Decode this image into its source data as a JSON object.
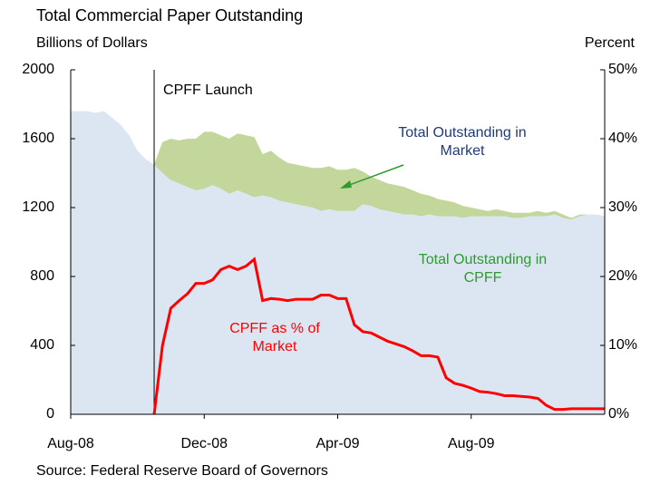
{
  "chart_data": {
    "type": "area",
    "title": "Total Commercial Paper Outstanding",
    "y_label": "Billions of Dollars",
    "y2_label": "Percent",
    "source": "Source: Federal Reserve Board of Governors",
    "annotation": "CPFF Launch",
    "categories": [
      "Aug-08",
      null,
      null,
      null,
      null,
      null,
      null,
      null,
      null,
      null,
      null,
      null,
      null,
      null,
      null,
      null,
      "Dec-08",
      null,
      null,
      null,
      null,
      null,
      null,
      null,
      null,
      null,
      null,
      null,
      null,
      null,
      null,
      null,
      "Apr-09",
      null,
      null,
      null,
      null,
      null,
      null,
      null,
      null,
      null,
      null,
      null,
      null,
      null,
      null,
      null,
      "Aug-09",
      null,
      null,
      null,
      null,
      null,
      null,
      null,
      null,
      null,
      null,
      null,
      null,
      null,
      null,
      null,
      null
    ],
    "ylim": [
      0,
      2000
    ],
    "yticks": [
      0,
      400,
      800,
      1200,
      1600,
      2000
    ],
    "y2lim": [
      0,
      50
    ],
    "y2ticks": [
      {
        "value": 0,
        "label": "0%"
      },
      {
        "value": 10,
        "label": "10%"
      },
      {
        "value": 20,
        "label": "20%"
      },
      {
        "value": 30,
        "label": "30%"
      },
      {
        "value": 40,
        "label": "40%"
      },
      {
        "value": 50,
        "label": "50%"
      }
    ],
    "series": [
      {
        "name": "Total Outstanding in Market",
        "color": "#dce6f2",
        "label_color": "#1f3a7a",
        "stack": true,
        "values": [
          1760,
          1760,
          1760,
          1750,
          1760,
          1720,
          1680,
          1620,
          1530,
          1480,
          1450,
          1400,
          1360,
          1340,
          1320,
          1300,
          1310,
          1330,
          1310,
          1280,
          1300,
          1280,
          1260,
          1270,
          1260,
          1240,
          1230,
          1220,
          1210,
          1200,
          1180,
          1190,
          1180,
          1180,
          1180,
          1220,
          1210,
          1190,
          1180,
          1170,
          1160,
          1160,
          1150,
          1160,
          1150,
          1150,
          1150,
          1140,
          1150,
          1150,
          1150,
          1150,
          1150,
          1140,
          1140,
          1150,
          1150,
          1150,
          1160,
          1140,
          1130,
          1150,
          1160,
          1160,
          1150
        ]
      },
      {
        "name": "Total Outstanding in CPFF",
        "color": "#c3d69b",
        "label_color": "#2e9b2e",
        "stack": true,
        "values": [
          null,
          null,
          null,
          null,
          null,
          null,
          null,
          null,
          null,
          null,
          0,
          180,
          240,
          250,
          280,
          300,
          330,
          310,
          310,
          320,
          330,
          340,
          350,
          240,
          270,
          250,
          230,
          230,
          230,
          230,
          250,
          250,
          240,
          240,
          250,
          190,
          170,
          170,
          160,
          160,
          160,
          140,
          130,
          110,
          100,
          90,
          80,
          70,
          50,
          40,
          30,
          40,
          30,
          30,
          30,
          20,
          30,
          20,
          20,
          20,
          10,
          10,
          0,
          0,
          0
        ]
      },
      {
        "name": "CPFF as % of Market",
        "color": "#ff0000",
        "label_color": "#ff0000",
        "axis": "y2",
        "values": [
          null,
          null,
          null,
          null,
          null,
          null,
          null,
          null,
          null,
          null,
          0,
          10,
          15.4,
          16.5,
          17.5,
          19,
          19,
          19.5,
          21,
          21.5,
          21,
          21.5,
          22.5,
          16.5,
          16.8,
          16.7,
          16.5,
          16.7,
          16.7,
          16.7,
          17.3,
          17.3,
          16.8,
          16.8,
          13,
          12,
          11.8,
          11.2,
          10.6,
          10.2,
          9.8,
          9.2,
          8.5,
          8.5,
          8.3,
          5.3,
          4.5,
          4.2,
          3.8,
          3.3,
          3.2,
          3,
          2.7,
          2.7,
          2.6,
          2.5,
          2.3,
          1.3,
          0.7,
          0.7,
          0.8,
          0.8,
          0.8,
          0.8,
          0.8
        ]
      }
    ]
  }
}
